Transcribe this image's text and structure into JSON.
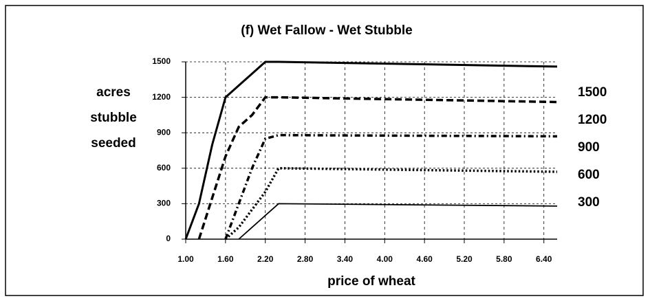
{
  "chart_data": {
    "type": "line",
    "title": "(f) Wet Fallow - Wet Stubble",
    "ylabel": [
      "acres",
      "stubble",
      "seeded"
    ],
    "xlabel": "price of wheat",
    "x": [
      1.0,
      1.2,
      1.4,
      1.6,
      1.8,
      2.0,
      2.2,
      2.4,
      6.6
    ],
    "series": [
      {
        "name": "1500",
        "color": "#000000",
        "style": "solid-thick",
        "values": [
          0,
          300,
          800,
          1200,
          1300,
          1400,
          1500,
          1500,
          1460
        ]
      },
      {
        "name": "1200",
        "color": "#000000",
        "style": "dashed",
        "values": [
          null,
          0,
          350,
          700,
          950,
          1050,
          1200,
          1200,
          1160
        ]
      },
      {
        "name": "900",
        "color": "#000000",
        "style": "dashdot",
        "values": [
          null,
          null,
          null,
          0,
          300,
          600,
          850,
          880,
          870
        ]
      },
      {
        "name": "600",
        "color": "#000000",
        "style": "dotted",
        "values": [
          null,
          null,
          null,
          0,
          100,
          250,
          400,
          600,
          570
        ]
      },
      {
        "name": "300",
        "color": "#000000",
        "style": "solid-thin",
        "values": [
          null,
          null,
          null,
          null,
          0,
          100,
          200,
          300,
          280
        ]
      }
    ],
    "xlim": [
      1.0,
      6.6
    ],
    "xticks": [
      {
        "value": 1.0,
        "label": "1.00"
      },
      {
        "value": 1.6,
        "label": "1.60"
      },
      {
        "value": 2.2,
        "label": "2.20"
      },
      {
        "value": 2.8,
        "label": "2.80"
      },
      {
        "value": 3.4,
        "label": "3.40"
      },
      {
        "value": 4.0,
        "label": "4.00"
      },
      {
        "value": 4.6,
        "label": "4.60"
      },
      {
        "value": 5.2,
        "label": "5.20"
      },
      {
        "value": 5.8,
        "label": "5.80"
      },
      {
        "value": 6.4,
        "label": "6.40"
      }
    ],
    "ylim": [
      0,
      1500
    ],
    "yticks": [
      0,
      300,
      600,
      900,
      1200,
      1500
    ],
    "grid": true
  }
}
